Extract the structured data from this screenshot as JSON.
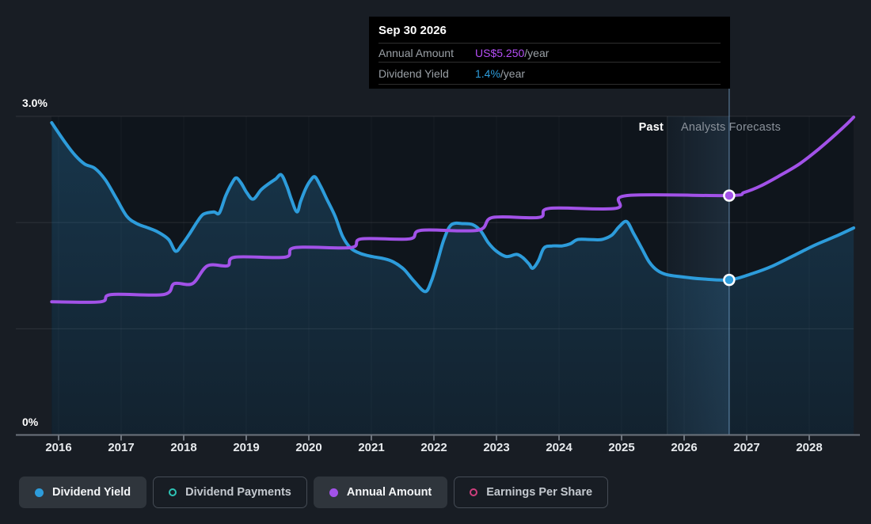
{
  "tooltip": {
    "date": "Sep 30 2026",
    "rows": [
      {
        "label": "Annual Amount",
        "value": "US$5.250",
        "suffix": "/year",
        "color": "#b44ef5"
      },
      {
        "label": "Dividend Yield",
        "value": "1.4%",
        "suffix": "/year",
        "color": "#2d9cdb"
      }
    ]
  },
  "annotations": {
    "past": "Past",
    "forecast": "Analysts Forecasts"
  },
  "legend": {
    "items": [
      {
        "label": "Dividend Yield",
        "color": "#2d9cdb",
        "style": "filled",
        "active": true
      },
      {
        "label": "Dividend Payments",
        "color": "#2ec4b6",
        "style": "ring",
        "active": false
      },
      {
        "label": "Annual Amount",
        "color": "#a252e8",
        "style": "filled",
        "active": true
      },
      {
        "label": "Earnings Per Share",
        "color": "#cf3f7d",
        "style": "ring",
        "active": false
      }
    ]
  },
  "chart_data": {
    "type": "line",
    "x_axis": {
      "ticks": [
        2016,
        2017,
        2018,
        2019,
        2020,
        2021,
        2022,
        2023,
        2024,
        2025,
        2026,
        2027,
        2028
      ]
    },
    "y_axis": {
      "unit": "%",
      "gridlines": [
        {
          "value": 3.0,
          "label": "3.0%"
        },
        {
          "value": 2.0
        },
        {
          "value": 1.0
        },
        {
          "value": 0,
          "label": "0%"
        }
      ]
    },
    "forecast_band": {
      "start": 2025.73,
      "end": 2026.72
    },
    "hover_x": 2026.72,
    "series": [
      {
        "name": "Dividend Yield",
        "unit": "%",
        "color": "#2d9cdb",
        "area": true,
        "marker": {
          "x": 2026.72,
          "y": 1.46
        },
        "points": [
          [
            2015.89,
            2.94
          ],
          [
            2016.11,
            2.75
          ],
          [
            2016.27,
            2.63
          ],
          [
            2016.42,
            2.55
          ],
          [
            2016.58,
            2.51
          ],
          [
            2016.75,
            2.4
          ],
          [
            2016.92,
            2.23
          ],
          [
            2017.09,
            2.06
          ],
          [
            2017.25,
            1.99
          ],
          [
            2017.43,
            1.95
          ],
          [
            2017.59,
            1.91
          ],
          [
            2017.76,
            1.84
          ],
          [
            2017.87,
            1.73
          ],
          [
            2017.97,
            1.79
          ],
          [
            2018.1,
            1.9
          ],
          [
            2018.23,
            2.02
          ],
          [
            2018.32,
            2.08
          ],
          [
            2018.48,
            2.1
          ],
          [
            2018.57,
            2.09
          ],
          [
            2018.67,
            2.25
          ],
          [
            2018.77,
            2.37
          ],
          [
            2018.84,
            2.42
          ],
          [
            2018.92,
            2.37
          ],
          [
            2019.01,
            2.28
          ],
          [
            2019.11,
            2.22
          ],
          [
            2019.24,
            2.31
          ],
          [
            2019.37,
            2.37
          ],
          [
            2019.47,
            2.41
          ],
          [
            2019.56,
            2.45
          ],
          [
            2019.65,
            2.34
          ],
          [
            2019.72,
            2.22
          ],
          [
            2019.81,
            2.1
          ],
          [
            2019.87,
            2.2
          ],
          [
            2019.95,
            2.32
          ],
          [
            2020.03,
            2.4
          ],
          [
            2020.1,
            2.43
          ],
          [
            2020.19,
            2.34
          ],
          [
            2020.28,
            2.23
          ],
          [
            2020.42,
            2.06
          ],
          [
            2020.54,
            1.87
          ],
          [
            2020.67,
            1.76
          ],
          [
            2020.82,
            1.71
          ],
          [
            2021.01,
            1.68
          ],
          [
            2021.2,
            1.66
          ],
          [
            2021.35,
            1.63
          ],
          [
            2021.52,
            1.56
          ],
          [
            2021.68,
            1.45
          ],
          [
            2021.86,
            1.35
          ],
          [
            2021.96,
            1.45
          ],
          [
            2022.06,
            1.64
          ],
          [
            2022.16,
            1.84
          ],
          [
            2022.28,
            1.98
          ],
          [
            2022.47,
            1.99
          ],
          [
            2022.62,
            1.98
          ],
          [
            2022.75,
            1.92
          ],
          [
            2022.87,
            1.81
          ],
          [
            2023.0,
            1.73
          ],
          [
            2023.16,
            1.68
          ],
          [
            2023.32,
            1.7
          ],
          [
            2023.42,
            1.67
          ],
          [
            2023.52,
            1.61
          ],
          [
            2023.58,
            1.57
          ],
          [
            2023.67,
            1.64
          ],
          [
            2023.76,
            1.76
          ],
          [
            2023.89,
            1.78
          ],
          [
            2024.05,
            1.78
          ],
          [
            2024.18,
            1.8
          ],
          [
            2024.3,
            1.84
          ],
          [
            2024.49,
            1.84
          ],
          [
            2024.68,
            1.84
          ],
          [
            2024.84,
            1.88
          ],
          [
            2024.96,
            1.96
          ],
          [
            2025.08,
            2.01
          ],
          [
            2025.19,
            1.9
          ],
          [
            2025.32,
            1.76
          ],
          [
            2025.44,
            1.63
          ],
          [
            2025.57,
            1.55
          ],
          [
            2025.72,
            1.51
          ],
          [
            2025.95,
            1.49
          ],
          [
            2026.27,
            1.47
          ],
          [
            2026.72,
            1.46
          ],
          [
            2027.09,
            1.52
          ],
          [
            2027.41,
            1.59
          ],
          [
            2027.79,
            1.7
          ],
          [
            2028.1,
            1.79
          ],
          [
            2028.42,
            1.87
          ],
          [
            2028.71,
            1.95
          ]
        ]
      },
      {
        "name": "Annual Amount",
        "unit": "US$",
        "color": "#a252e8",
        "area": false,
        "marker": {
          "x": 2026.72,
          "y": 5.25
        },
        "points": [
          [
            2015.89,
            2.92
          ],
          [
            2016.67,
            2.92
          ],
          [
            2016.84,
            3.08
          ],
          [
            2017.68,
            3.08
          ],
          [
            2017.85,
            3.32
          ],
          [
            2018.14,
            3.32
          ],
          [
            2018.38,
            3.71
          ],
          [
            2018.7,
            3.71
          ],
          [
            2018.82,
            3.9
          ],
          [
            2019.62,
            3.9
          ],
          [
            2019.78,
            4.11
          ],
          [
            2020.67,
            4.11
          ],
          [
            2020.84,
            4.3
          ],
          [
            2021.61,
            4.3
          ],
          [
            2021.8,
            4.49
          ],
          [
            2022.7,
            4.49
          ],
          [
            2022.94,
            4.77
          ],
          [
            2023.68,
            4.77
          ],
          [
            2023.85,
            4.97
          ],
          [
            2024.91,
            4.97
          ],
          [
            2025.08,
            5.25
          ],
          [
            2026.72,
            5.25
          ],
          [
            2026.96,
            5.32
          ],
          [
            2027.22,
            5.46
          ],
          [
            2027.53,
            5.69
          ],
          [
            2027.85,
            5.95
          ],
          [
            2028.16,
            6.28
          ],
          [
            2028.42,
            6.59
          ],
          [
            2028.61,
            6.83
          ],
          [
            2028.71,
            6.97
          ]
        ]
      }
    ]
  }
}
